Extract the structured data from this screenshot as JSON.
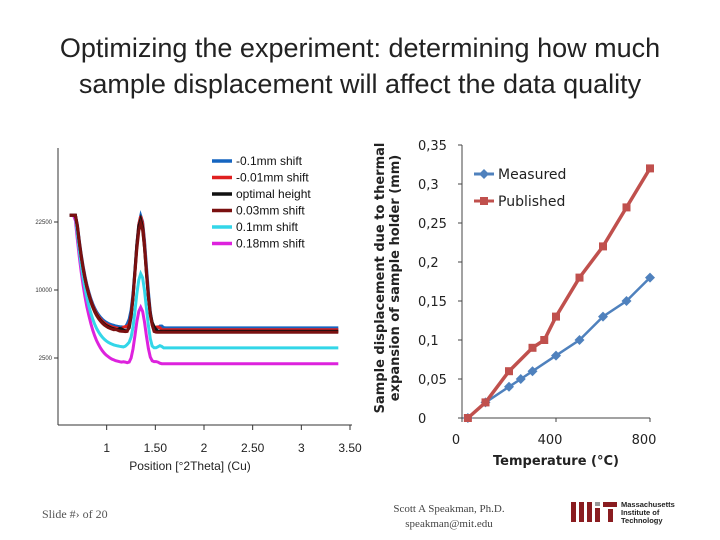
{
  "slide": {
    "title_line1": "Optimizing the experiment: determining how much",
    "title_line2": "sample displacement will affect the data quality",
    "footer_left": "Slide #› of 20",
    "author_line1": "Scott A Speakman, Ph.D.",
    "author_line2": "speakman@mit.edu",
    "logo_line1": "Massachusetts",
    "logo_line2": "Institute of",
    "logo_line3": "Technology"
  },
  "chart_data": [
    {
      "type": "line",
      "xlabel": "Position [°2Theta] (Cu)",
      "ylabel": "",
      "x_ticks": [
        "1",
        "1.50",
        "2",
        "2.50",
        "3",
        "3.50"
      ],
      "y_ticks": [
        "2500",
        "10000",
        "22500"
      ],
      "xlim": [
        0.5,
        3.5
      ],
      "legend_position": "top-right",
      "peak_position_2theta": 1.35,
      "series": [
        {
          "name": "-0.1mm shift",
          "color": "#1565c0",
          "peak_counts": 24000,
          "background_counts": 5200
        },
        {
          "name": "-0.01mm shift",
          "color": "#e02020",
          "peak_counts": 23500,
          "background_counts": 5000
        },
        {
          "name": "optimal height",
          "color": "#111111",
          "peak_counts": 23000,
          "background_counts": 4850
        },
        {
          "name": "0.03mm shift",
          "color": "#7a1010",
          "peak_counts": 22500,
          "background_counts": 4750
        },
        {
          "name": "0.1mm shift",
          "color": "#33d6e8",
          "peak_counts": 12500,
          "background_counts": 3300
        },
        {
          "name": "0.18mm shift",
          "color": "#dd22dd",
          "peak_counts": 7500,
          "background_counts": 2100
        }
      ]
    },
    {
      "type": "line",
      "xlabel": "Temperature (°C)",
      "ylabel": "Sample displacement due to thermal expansion of sample holder (mm)",
      "x_ticks": [
        "0",
        "400",
        "800"
      ],
      "y_ticks": [
        "0",
        "0,05",
        "0,1",
        "0,15",
        "0,2",
        "0,25",
        "0,3",
        "0,35"
      ],
      "xlim": [
        0,
        800
      ],
      "ylim": [
        0,
        0.35
      ],
      "legend_position": "top-right",
      "series": [
        {
          "name": "Measured",
          "color": "#4f81bd",
          "marker": "diamond",
          "x": [
            25,
            100,
            200,
            250,
            300,
            400,
            500,
            600,
            700,
            800
          ],
          "y": [
            0,
            0.02,
            0.04,
            0.05,
            0.06,
            0.08,
            0.1,
            0.13,
            0.15,
            0.18
          ]
        },
        {
          "name": "Published",
          "color": "#c0504d",
          "marker": "square",
          "x": [
            25,
            100,
            200,
            300,
            350,
            400,
            500,
            600,
            700,
            800
          ],
          "y": [
            0,
            0.02,
            0.06,
            0.09,
            0.1,
            0.13,
            0.18,
            0.22,
            0.27,
            0.32
          ]
        }
      ]
    }
  ]
}
